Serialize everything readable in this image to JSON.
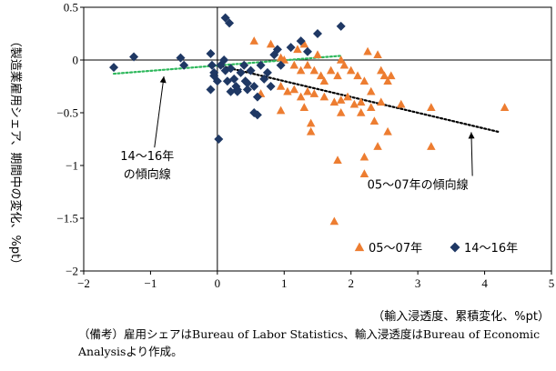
{
  "chart_data": {
    "type": "scatter",
    "title": "",
    "xlabel": "（輸入浸透度、累積変化、%pt）",
    "ylabel": "（製造業雇用シェア、期間中の変化、%pt）",
    "xlim": [
      -2,
      5
    ],
    "ylim": [
      -2,
      0.5
    ],
    "xticks": [
      -2,
      -1,
      0,
      1,
      2,
      3,
      4,
      5
    ],
    "yticks": [
      0.5,
      0,
      -0.5,
      -1,
      -1.5,
      -2
    ],
    "xtick_labels": [
      "−2",
      "−1",
      "0",
      "1",
      "2",
      "3",
      "4",
      "5"
    ],
    "ytick_labels": [
      "0.5",
      "0",
      "−0.5",
      "−1",
      "−1.5",
      "−2"
    ],
    "grid": false,
    "legend_position": "bottom-right",
    "series": [
      {
        "name": "05～07年",
        "marker": "triangle",
        "color": "#ED7D31",
        "points": [
          [
            0.55,
            0.18
          ],
          [
            0.8,
            0.15
          ],
          [
            0.95,
            0.02
          ],
          [
            1.0,
            0.0
          ],
          [
            1.15,
            -0.05
          ],
          [
            1.2,
            0.1
          ],
          [
            1.25,
            -0.1
          ],
          [
            1.3,
            0.15
          ],
          [
            1.35,
            -0.05
          ],
          [
            1.45,
            -0.1
          ],
          [
            1.5,
            0.05
          ],
          [
            1.55,
            -0.15
          ],
          [
            1.6,
            -0.2
          ],
          [
            1.7,
            -0.1
          ],
          [
            1.8,
            -0.15
          ],
          [
            1.85,
            0.0
          ],
          [
            1.9,
            -0.05
          ],
          [
            2.0,
            -0.1
          ],
          [
            2.1,
            -0.15
          ],
          [
            2.2,
            -0.2
          ],
          [
            2.3,
            -0.3
          ],
          [
            2.45,
            -0.1
          ],
          [
            2.5,
            -0.15
          ],
          [
            2.55,
            -0.2
          ],
          [
            2.6,
            -0.15
          ],
          [
            2.25,
            0.08
          ],
          [
            2.4,
            0.05
          ],
          [
            0.95,
            -0.25
          ],
          [
            1.05,
            -0.3
          ],
          [
            1.15,
            -0.28
          ],
          [
            1.25,
            -0.35
          ],
          [
            1.35,
            -0.3
          ],
          [
            1.45,
            -0.32
          ],
          [
            1.6,
            -0.35
          ],
          [
            1.75,
            -0.4
          ],
          [
            1.85,
            -0.38
          ],
          [
            1.95,
            -0.35
          ],
          [
            2.05,
            -0.42
          ],
          [
            2.15,
            -0.4
          ],
          [
            2.3,
            -0.45
          ],
          [
            2.45,
            -0.4
          ],
          [
            2.75,
            -0.42
          ],
          [
            0.65,
            -0.32
          ],
          [
            0.95,
            -0.48
          ],
          [
            1.3,
            -0.45
          ],
          [
            1.4,
            -0.6
          ],
          [
            1.4,
            -0.68
          ],
          [
            1.85,
            -0.5
          ],
          [
            2.15,
            -0.5
          ],
          [
            2.35,
            -0.58
          ],
          [
            2.55,
            -0.68
          ],
          [
            2.4,
            -0.82
          ],
          [
            2.2,
            -0.92
          ],
          [
            3.2,
            -0.45
          ],
          [
            3.2,
            -0.82
          ],
          [
            4.3,
            -0.45
          ],
          [
            1.8,
            -0.95
          ],
          [
            2.2,
            -1.08
          ],
          [
            1.75,
            -1.53
          ]
        ]
      },
      {
        "name": "14～16年",
        "marker": "diamond",
        "color": "#1F3864",
        "points": [
          [
            -1.55,
            -0.07
          ],
          [
            -1.25,
            0.03
          ],
          [
            -0.55,
            0.02
          ],
          [
            -0.5,
            -0.05
          ],
          [
            -0.1,
            0.06
          ],
          [
            -0.08,
            -0.05
          ],
          [
            -0.05,
            -0.15
          ],
          [
            -0.1,
            -0.28
          ],
          [
            0.05,
            -0.05
          ],
          [
            0.1,
            0.0
          ],
          [
            0.12,
            -0.1
          ],
          [
            0.15,
            -0.2
          ],
          [
            0.2,
            -0.08
          ],
          [
            0.25,
            -0.18
          ],
          [
            0.28,
            -0.25
          ],
          [
            0.3,
            -0.28
          ],
          [
            0.35,
            -0.12
          ],
          [
            0.4,
            -0.05
          ],
          [
            0.42,
            -0.2
          ],
          [
            0.45,
            -0.22
          ],
          [
            0.5,
            -0.1
          ],
          [
            0.55,
            -0.25
          ],
          [
            0.6,
            -0.35
          ],
          [
            0.65,
            -0.05
          ],
          [
            0.7,
            -0.18
          ],
          [
            0.75,
            -0.12
          ],
          [
            0.8,
            -0.25
          ],
          [
            0.85,
            0.05
          ],
          [
            0.9,
            0.1
          ],
          [
            0.95,
            -0.05
          ],
          [
            1.1,
            0.12
          ],
          [
            1.25,
            0.18
          ],
          [
            1.35,
            0.08
          ],
          [
            1.5,
            0.25
          ],
          [
            1.85,
            0.32
          ],
          [
            0.12,
            0.4
          ],
          [
            0.18,
            0.35
          ],
          [
            0.55,
            -0.5
          ],
          [
            0.6,
            -0.52
          ],
          [
            0.02,
            -0.75
          ],
          [
            0.3,
            -0.3
          ],
          [
            0.0,
            -0.2
          ],
          [
            -0.05,
            -0.12
          ],
          [
            0.2,
            -0.3
          ],
          [
            0.45,
            -0.28
          ]
        ]
      }
    ],
    "trendlines": [
      {
        "name": "05～07年の傾向線",
        "color": "#000000",
        "from": [
          0.0,
          -0.05
        ],
        "to": [
          4.2,
          -0.68
        ]
      },
      {
        "name": "14～16年の傾向線",
        "color": "#2EB85C",
        "from": [
          -1.55,
          -0.13
        ],
        "to": [
          1.85,
          0.04
        ]
      }
    ],
    "annotations": [
      {
        "lines": [
          "14～16年",
          "の傾向線"
        ],
        "text_at": [
          -1.05,
          -0.95
        ],
        "arrow_to": [
          -0.8,
          -0.12
        ]
      },
      {
        "lines": [
          "05～07年の傾向線"
        ],
        "text_at": [
          3.0,
          -1.22
        ],
        "arrow_to": [
          3.8,
          -0.65
        ]
      }
    ]
  },
  "note": {
    "label": "（備考）",
    "text": "雇用シェアはBureau of Labor Statistics、輸入浸透度はBureau of Economic Analysisより作成。"
  }
}
